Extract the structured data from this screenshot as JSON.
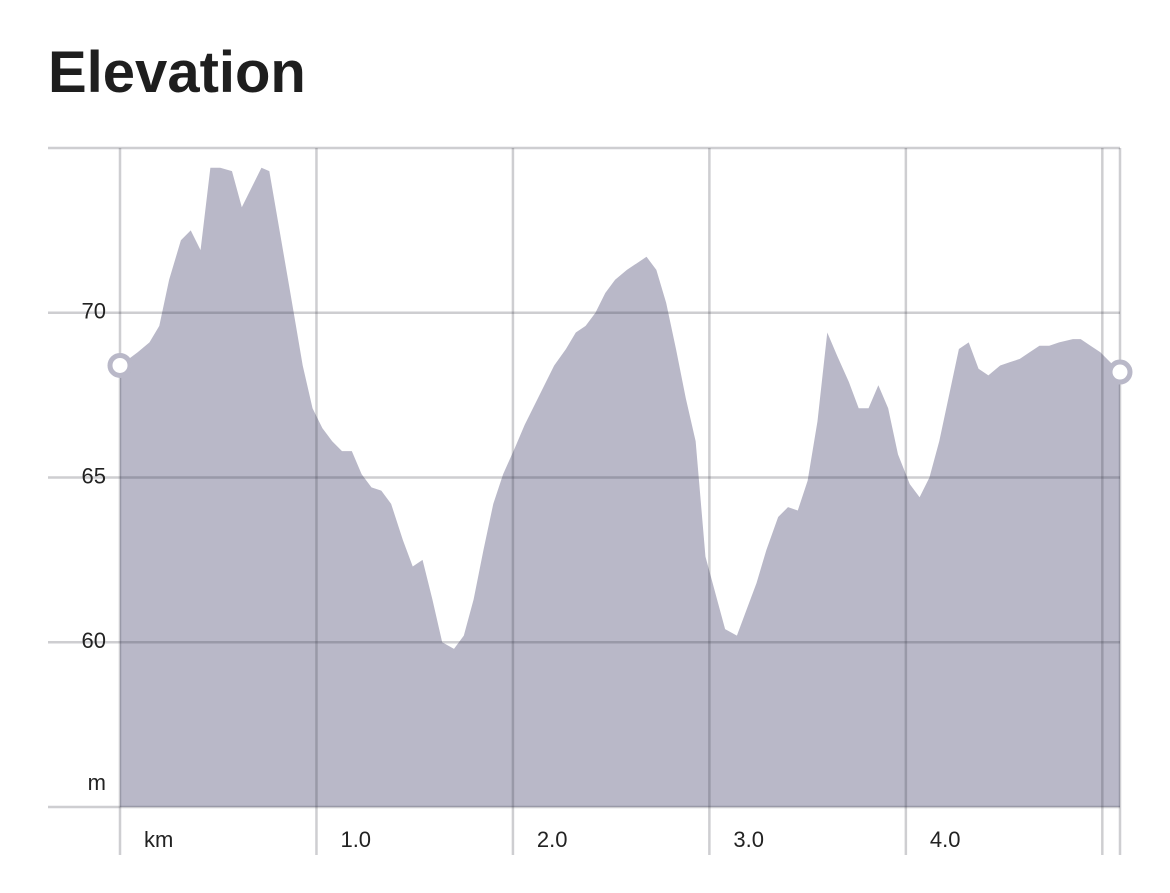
{
  "chart_data": {
    "type": "area",
    "title": "Elevation",
    "y_label": "m",
    "color": "#b9b8c8",
    "grid": true,
    "endpoint_markers": true,
    "xlim": [
      0,
      5.09
    ],
    "ylim": [
      55,
      75
    ],
    "xticks": [
      {
        "value": 0,
        "label": "km"
      },
      {
        "value": 1,
        "label": "1.0"
      },
      {
        "value": 2,
        "label": "2.0"
      },
      {
        "value": 3,
        "label": "3.0"
      },
      {
        "value": 4,
        "label": "4.0"
      },
      {
        "value": 5,
        "label": null
      }
    ],
    "yticks": [
      60,
      65,
      70
    ],
    "x": [
      0,
      0.09,
      0.15,
      0.2,
      0.25,
      0.31,
      0.36,
      0.41,
      0.46,
      0.51,
      0.57,
      0.62,
      0.72,
      0.76,
      0.87,
      0.93,
      0.98,
      1.03,
      1.08,
      1.13,
      1.18,
      1.23,
      1.28,
      1.33,
      1.38,
      1.44,
      1.49,
      1.54,
      1.59,
      1.64,
      1.7,
      1.75,
      1.8,
      1.85,
      1.9,
      1.95,
      2.01,
      2.06,
      2.11,
      2.16,
      2.21,
      2.27,
      2.32,
      2.37,
      2.42,
      2.47,
      2.52,
      2.58,
      2.63,
      2.68,
      2.73,
      2.78,
      2.83,
      2.88,
      2.93,
      2.98,
      3.03,
      3.08,
      3.14,
      3.19,
      3.24,
      3.29,
      3.35,
      3.4,
      3.45,
      3.5,
      3.55,
      3.6,
      3.65,
      3.71,
      3.76,
      3.81,
      3.86,
      3.91,
      3.96,
      4.02,
      4.07,
      4.12,
      4.17,
      4.22,
      4.27,
      4.32,
      4.37,
      4.42,
      4.48,
      4.53,
      4.58,
      4.63,
      4.68,
      4.73,
      4.78,
      4.85,
      4.89,
      4.94,
      4.99,
      5.09
    ],
    "values": [
      68.4,
      68.8,
      69.1,
      69.6,
      71.0,
      72.2,
      72.5,
      71.9,
      74.4,
      74.4,
      74.3,
      73.2,
      74.4,
      74.3,
      70.5,
      68.4,
      67.1,
      66.5,
      66.1,
      65.8,
      65.8,
      65.1,
      64.7,
      64.6,
      64.2,
      63.1,
      62.3,
      62.5,
      61.3,
      60.0,
      59.8,
      60.2,
      61.3,
      62.8,
      64.2,
      65.1,
      65.9,
      66.6,
      67.2,
      67.8,
      68.4,
      68.9,
      69.4,
      69.6,
      70.0,
      70.6,
      71.0,
      71.3,
      71.5,
      71.7,
      71.3,
      70.3,
      68.9,
      67.4,
      66.1,
      62.6,
      61.5,
      60.4,
      60.2,
      61.0,
      61.8,
      62.8,
      63.8,
      64.1,
      64.0,
      64.9,
      66.7,
      69.4,
      68.7,
      67.9,
      67.1,
      67.1,
      67.8,
      67.1,
      65.7,
      64.8,
      64.4,
      65.0,
      66.1,
      67.5,
      68.9,
      69.1,
      68.3,
      68.1,
      68.4,
      68.5,
      68.6,
      68.8,
      69.0,
      69.0,
      69.1,
      69.2,
      69.2,
      69.0,
      68.8,
      68.2
    ]
  }
}
